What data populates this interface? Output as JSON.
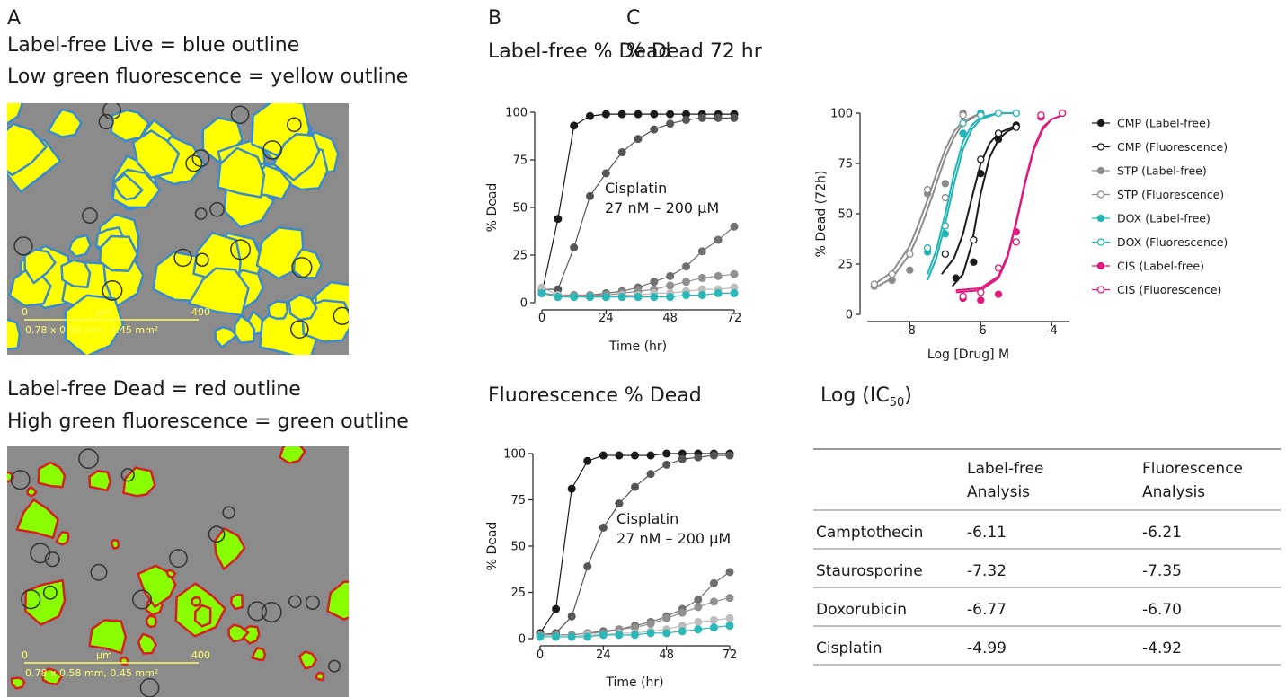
{
  "panels": {
    "a": "A",
    "b": "B",
    "c": "C"
  },
  "images": [
    {
      "caption": [
        "Label-free Live = blue outline",
        "Low green fluorescence = yellow outline"
      ],
      "scale": {
        "start": "0",
        "unit": "µm",
        "end": "400",
        "info": "0.78 x 0.58 mm, 0.45 mm²"
      }
    },
    {
      "caption": [
        "Label-free Dead = red outline",
        "High green fluorescence = green outline"
      ],
      "scale": {
        "start": "0",
        "unit": "µm",
        "end": "400",
        "info": "0.78 x 0.58 mm, 0.45 mm²"
      }
    }
  ],
  "chart_data": [
    {
      "type": "line",
      "title": "Label-free % Dead",
      "xlabel": "Time (hr)",
      "ylabel": "% Dead",
      "annotation": [
        "Cisplatin",
        "27 nM – 200 µM"
      ],
      "x": [
        0,
        6,
        12,
        18,
        24,
        30,
        36,
        42,
        48,
        54,
        60,
        66,
        72
      ],
      "xlim": [
        0,
        72
      ],
      "xticks": [
        0,
        24,
        48,
        72
      ],
      "ylim": [
        0,
        100
      ],
      "yticks": [
        0,
        25,
        50,
        75,
        100
      ],
      "series": [
        {
          "color": "#1a1a1a",
          "values": [
            5,
            44,
            93,
            98,
            99,
            99,
            99,
            99,
            99,
            99,
            99,
            99,
            99
          ]
        },
        {
          "color": "#555555",
          "values": [
            7,
            7,
            29,
            56,
            68,
            79,
            86,
            91,
            94,
            96,
            97,
            97,
            97
          ]
        },
        {
          "color": "#707070",
          "values": [
            5,
            4,
            4,
            4,
            5,
            6,
            8,
            11,
            14,
            19,
            27,
            33,
            40
          ]
        },
        {
          "color": "#909090",
          "values": [
            5,
            4,
            4,
            4,
            4,
            5,
            6,
            7,
            9,
            11,
            13,
            14,
            15
          ]
        },
        {
          "color": "#bdbdbd",
          "values": [
            8,
            4,
            3,
            3,
            3,
            4,
            4,
            5,
            5,
            6,
            7,
            7,
            8
          ]
        },
        {
          "color": "#2ab7b7",
          "values": [
            5,
            3,
            3,
            3,
            3,
            3,
            3,
            3,
            3,
            4,
            4,
            5,
            5
          ]
        }
      ]
    },
    {
      "type": "line",
      "title": "Fluorescence % Dead",
      "xlabel": "Time (hr)",
      "ylabel": "% Dead",
      "annotation": [
        "Cisplatin",
        "27 nM – 200 µM"
      ],
      "x": [
        0,
        6,
        12,
        18,
        24,
        30,
        36,
        42,
        48,
        54,
        60,
        66,
        72
      ],
      "xlim": [
        0,
        72
      ],
      "xticks": [
        0,
        24,
        48,
        72
      ],
      "ylim": [
        0,
        100
      ],
      "yticks": [
        0,
        25,
        50,
        75,
        100
      ],
      "series": [
        {
          "color": "#1a1a1a",
          "values": [
            3,
            16,
            81,
            96,
            99,
            99,
            99,
            99,
            100,
            100,
            100,
            100,
            100
          ]
        },
        {
          "color": "#555555",
          "values": [
            2,
            3,
            12,
            39,
            60,
            73,
            82,
            89,
            94,
            97,
            98,
            99,
            99
          ]
        },
        {
          "color": "#707070",
          "values": [
            2,
            2,
            2,
            3,
            4,
            5,
            7,
            9,
            12,
            16,
            21,
            30,
            36
          ]
        },
        {
          "color": "#909090",
          "values": [
            2,
            2,
            2,
            3,
            3,
            5,
            6,
            8,
            11,
            14,
            17,
            20,
            22
          ]
        },
        {
          "color": "#bdbdbd",
          "values": [
            1,
            1,
            1,
            2,
            2,
            3,
            3,
            4,
            5,
            7,
            9,
            10,
            11
          ]
        },
        {
          "color": "#2ab7b7",
          "values": [
            1,
            1,
            1,
            1,
            2,
            2,
            2,
            3,
            3,
            4,
            5,
            6,
            7
          ]
        }
      ]
    },
    {
      "type": "scatter",
      "title": "% Dead 72 hr",
      "xlabel": "Log [Drug] M",
      "ylabel": "% Dead (72h)",
      "xlim": [
        -9.2,
        -3.5
      ],
      "xticks": [
        -8,
        -6,
        -4
      ],
      "ylim": [
        0,
        100
      ],
      "yticks": [
        0,
        25,
        50,
        75,
        100
      ],
      "legend": "right",
      "series": [
        {
          "name": "CMP (Label-free)",
          "color": "#1a1a1a",
          "marker": "filled",
          "x": [
            -6.7,
            -6.2,
            -6,
            -5.5,
            -5
          ],
          "values": [
            18,
            26,
            70,
            87,
            94
          ],
          "fit": {
            "x": [
              -6.8,
              -6.5,
              -6.25,
              -6,
              -5.75,
              -5.5,
              -5.25,
              -5
            ],
            "values": [
              14,
              20,
              35,
              60,
              78,
              87,
              91,
              93
            ]
          }
        },
        {
          "name": "CMP (Fluorescence)",
          "color": "#1a1a1a",
          "marker": "open",
          "x": [
            -7,
            -6.2,
            -6,
            -5.5,
            -5
          ],
          "values": [
            30,
            37,
            77,
            90,
            93
          ],
          "fit": {
            "x": [
              -7.1,
              -6.75,
              -6.5,
              -6.25,
              -6,
              -5.75,
              -5.5,
              -5
            ],
            "values": [
              20,
              28,
              40,
              58,
              75,
              85,
              90,
              94
            ]
          }
        },
        {
          "name": "STP (Label-free)",
          "color": "#8c8c8c",
          "marker": "filled",
          "x": [
            -9,
            -8.5,
            -8,
            -7.5,
            -7,
            -6.5,
            -6
          ],
          "values": [
            14,
            17,
            22,
            60,
            65,
            100,
            100
          ],
          "fit": {
            "x": [
              -9,
              -8.5,
              -8,
              -7.75,
              -7.5,
              -7.25,
              -7,
              -6.75,
              -6.5,
              -6
            ],
            "values": [
              13,
              18,
              30,
              40,
              52,
              65,
              78,
              88,
              95,
              100
            ]
          }
        },
        {
          "name": "STP (Fluorescence)",
          "color": "#8c8c8c",
          "marker": "open",
          "x": [
            -9,
            -8.5,
            -8,
            -7.5,
            -7,
            -6.5,
            -6
          ],
          "values": [
            15,
            20,
            30,
            62,
            58,
            99,
            99
          ],
          "fit": {
            "x": [
              -9,
              -8.5,
              -8,
              -7.75,
              -7.5,
              -7.25,
              -7,
              -6.75,
              -6.5,
              -6
            ],
            "values": [
              15,
              21,
              34,
              45,
              57,
              70,
              82,
              91,
              96,
              100
            ]
          }
        },
        {
          "name": "DOX (Label-free)",
          "color": "#22b5b5",
          "marker": "filled",
          "x": [
            -7.5,
            -7,
            -6.5,
            -6,
            -5.5,
            -5
          ],
          "values": [
            31,
            40,
            90,
            100,
            100,
            100
          ],
          "fit": {
            "x": [
              -7.5,
              -7.25,
              -7,
              -6.75,
              -6.5,
              -6.25,
              -6,
              -5.5,
              -5
            ],
            "values": [
              17,
              28,
              45,
              65,
              82,
              92,
              97,
              100,
              100
            ]
          }
        },
        {
          "name": "DOX (Fluorescence)",
          "color": "#22b5b5",
          "marker": "open",
          "x": [
            -7.5,
            -7,
            -6.5,
            -6,
            -5.5,
            -5
          ],
          "values": [
            33,
            44,
            95,
            99,
            100,
            100
          ],
          "fit": {
            "x": [
              -7.5,
              -7.25,
              -7,
              -6.75,
              -6.5,
              -6.25,
              -6,
              -5.5,
              -5
            ],
            "values": [
              20,
              32,
              50,
              70,
              86,
              94,
              98,
              100,
              100
            ]
          }
        },
        {
          "name": "CIS (Label-free)",
          "color": "#e0197d",
          "marker": "filled",
          "x": [
            -6.5,
            -6,
            -5.5,
            -5,
            -4.3,
            -3.7
          ],
          "values": [
            8,
            7,
            10,
            41,
            98,
            100
          ],
          "fit": {
            "x": [
              -6.7,
              -6,
              -5.5,
              -5.25,
              -5,
              -4.75,
              -4.5,
              -4.25,
              -4,
              -3.7
            ],
            "values": [
              11,
              12,
              18,
              28,
              45,
              65,
              82,
              92,
              97,
              99
            ]
          }
        },
        {
          "name": "CIS (Fluorescence)",
          "color": "#e0197d",
          "marker": "open",
          "x": [
            -6.5,
            -6,
            -5.5,
            -5,
            -4.3,
            -3.7
          ],
          "values": [
            9,
            11,
            23,
            36,
            99,
            100
          ],
          "fit": {
            "x": [
              -6.7,
              -6,
              -5.5,
              -5.25,
              -5,
              -4.75,
              -4.5,
              -4.25,
              -4,
              -3.7
            ],
            "values": [
              12,
              13,
              19,
              29,
              46,
              66,
              83,
              93,
              97,
              99
            ]
          }
        }
      ]
    }
  ],
  "table": {
    "title": [
      "Log (IC",
      "50",
      ")"
    ],
    "header": [
      [
        "Label-free",
        "Analysis"
      ],
      [
        "Fluorescence",
        "Analysis"
      ]
    ],
    "rows": [
      [
        "Camptothecin",
        "-6.11",
        "-6.21"
      ],
      [
        "Staurosporine",
        "-7.32",
        "-7.35"
      ],
      [
        "Doxorubicin",
        "-6.77",
        "-6.70"
      ],
      [
        "Cisplatin",
        "-4.99",
        "-4.92"
      ]
    ]
  }
}
